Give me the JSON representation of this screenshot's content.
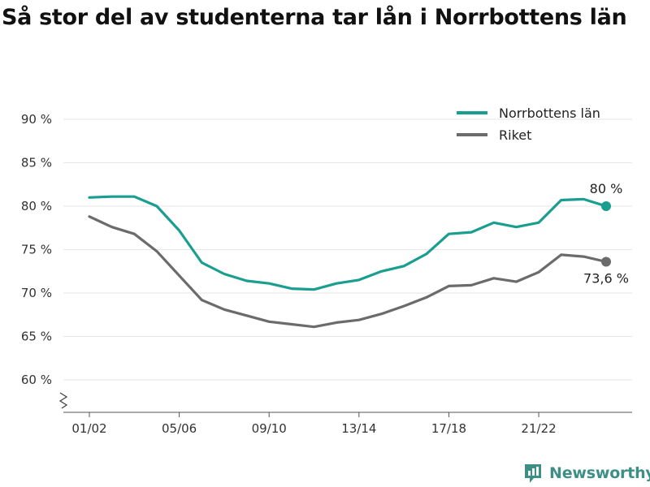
{
  "title": "Så stor del av studenterna tar lån i Norrbottens län",
  "brand": {
    "name": "Newsworthy"
  },
  "chart_data": {
    "type": "line",
    "xlabel": "",
    "ylabel": "",
    "x_tick_labels": [
      "01/02",
      "05/06",
      "09/10",
      "13/14",
      "17/18",
      "21/22"
    ],
    "x_tick_indices": [
      0,
      4,
      8,
      12,
      16,
      20
    ],
    "y_ticks": [
      60,
      65,
      70,
      75,
      80,
      85,
      90
    ],
    "y_tick_labels": [
      "60 %",
      "65 %",
      "70 %",
      "75 %",
      "80 %",
      "85 %",
      "90 %"
    ],
    "ylim": [
      60,
      90
    ],
    "y_axis_break": true,
    "grid": "horizontal",
    "legend_position": "top-right",
    "series": [
      {
        "name": "Norrbottens län",
        "color": "#1a9e8f",
        "values": [
          81.0,
          81.1,
          81.1,
          80.0,
          77.2,
          73.5,
          72.2,
          71.4,
          71.1,
          70.5,
          70.4,
          71.1,
          71.5,
          72.5,
          73.1,
          74.5,
          76.8,
          77.0,
          78.1,
          77.6,
          78.1,
          80.7,
          80.8,
          80.0
        ],
        "end_label": "80 %"
      },
      {
        "name": "Riket",
        "color": "#6b6b6b",
        "values": [
          78.8,
          77.6,
          76.8,
          74.8,
          72.0,
          69.2,
          68.1,
          67.4,
          66.7,
          66.4,
          66.1,
          66.6,
          66.9,
          67.6,
          68.5,
          69.5,
          70.8,
          70.9,
          71.7,
          71.3,
          72.4,
          74.4,
          74.2,
          73.6
        ],
        "end_label": "73,6 %"
      }
    ]
  }
}
